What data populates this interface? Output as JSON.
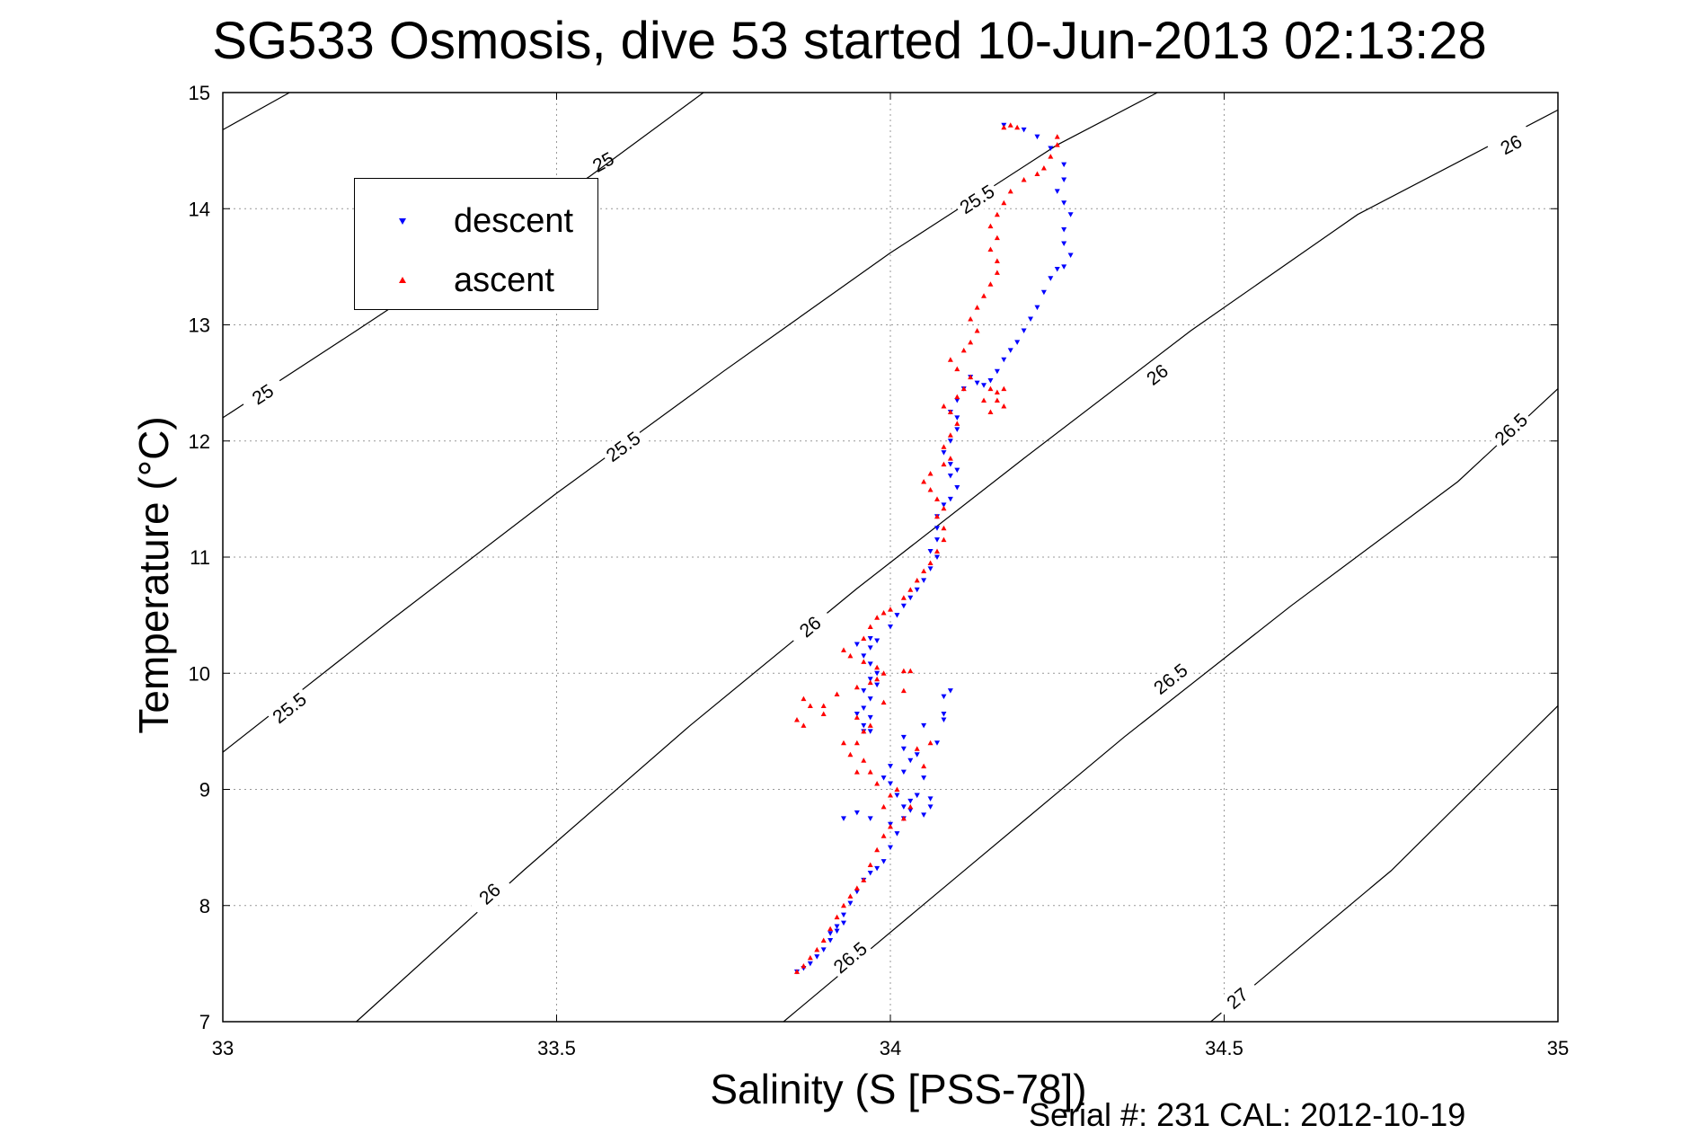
{
  "chart_data": {
    "type": "scatter",
    "title": "SG533 Osmosis, dive 53 started 10-Jun-2013 02:13:28",
    "xlabel": "Salinity (S [PSS-78])",
    "ylabel": "Temperature (°C)",
    "footer": "Serial #: 231  CAL: 2012-10-19",
    "xlim": [
      33,
      35
    ],
    "ylim": [
      7,
      15
    ],
    "xticks": [
      33,
      33.5,
      34,
      34.5,
      35
    ],
    "xtick_labels": [
      "33",
      "33.5",
      "34",
      "34.5",
      "35"
    ],
    "yticks": [
      7,
      8,
      9,
      10,
      11,
      12,
      13,
      14,
      15
    ],
    "ytick_labels": [
      "7",
      "8",
      "9",
      "10",
      "11",
      "12",
      "13",
      "14",
      "15"
    ],
    "grid": true,
    "legend": {
      "placement": "top-left",
      "entries": [
        "descent",
        "ascent"
      ]
    },
    "series": [
      {
        "name": "descent",
        "color": "#0000ff",
        "marker": "triangle-down",
        "points": [
          [
            33.86,
            7.43
          ],
          [
            33.87,
            7.46
          ],
          [
            33.88,
            7.5
          ],
          [
            33.89,
            7.56
          ],
          [
            33.9,
            7.62
          ],
          [
            33.91,
            7.7
          ],
          [
            33.92,
            7.78
          ],
          [
            33.93,
            7.85
          ],
          [
            33.92,
            7.82
          ],
          [
            33.91,
            7.76
          ],
          [
            33.93,
            7.92
          ],
          [
            33.94,
            8.02
          ],
          [
            33.95,
            8.12
          ],
          [
            33.96,
            8.22
          ],
          [
            33.97,
            8.28
          ],
          [
            33.98,
            8.32
          ],
          [
            33.99,
            8.38
          ],
          [
            34.0,
            8.5
          ],
          [
            34.01,
            8.62
          ],
          [
            34.0,
            8.7
          ],
          [
            33.97,
            8.75
          ],
          [
            33.95,
            8.8
          ],
          [
            33.93,
            8.75
          ],
          [
            34.02,
            8.85
          ],
          [
            34.03,
            8.9
          ],
          [
            34.04,
            8.95
          ],
          [
            34.06,
            8.92
          ],
          [
            34.06,
            8.85
          ],
          [
            34.05,
            8.78
          ],
          [
            34.03,
            8.82
          ],
          [
            34.01,
            8.95
          ],
          [
            34.0,
            9.05
          ],
          [
            34.02,
            9.15
          ],
          [
            34.03,
            9.25
          ],
          [
            34.04,
            9.3
          ],
          [
            34.02,
            9.35
          ],
          [
            34.0,
            9.2
          ],
          [
            33.99,
            9.1
          ],
          [
            33.97,
            9.5
          ],
          [
            33.96,
            9.55
          ],
          [
            33.97,
            9.62
          ],
          [
            33.96,
            9.7
          ],
          [
            33.97,
            9.78
          ],
          [
            33.96,
            9.85
          ],
          [
            33.98,
            9.9
          ],
          [
            33.97,
            9.95
          ],
          [
            33.98,
            10.0
          ],
          [
            33.97,
            10.08
          ],
          [
            33.96,
            10.15
          ],
          [
            33.97,
            10.22
          ],
          [
            33.98,
            10.28
          ],
          [
            33.97,
            10.3
          ],
          [
            33.95,
            10.25
          ],
          [
            34.0,
            10.4
          ],
          [
            34.01,
            10.5
          ],
          [
            34.02,
            10.58
          ],
          [
            34.03,
            10.65
          ],
          [
            34.04,
            10.72
          ],
          [
            34.05,
            10.8
          ],
          [
            34.06,
            10.9
          ],
          [
            34.07,
            11.0
          ],
          [
            34.06,
            11.05
          ],
          [
            34.07,
            11.15
          ],
          [
            34.07,
            11.25
          ],
          [
            34.07,
            11.35
          ],
          [
            34.08,
            11.45
          ],
          [
            34.09,
            11.5
          ],
          [
            34.1,
            11.6
          ],
          [
            34.09,
            11.7
          ],
          [
            34.1,
            11.75
          ],
          [
            34.09,
            11.8
          ],
          [
            34.08,
            11.9
          ],
          [
            34.09,
            12.0
          ],
          [
            34.1,
            12.1
          ],
          [
            34.1,
            12.2
          ],
          [
            34.09,
            12.25
          ],
          [
            34.1,
            12.35
          ],
          [
            34.11,
            12.45
          ],
          [
            34.12,
            12.55
          ],
          [
            34.13,
            12.5
          ],
          [
            34.14,
            12.48
          ],
          [
            34.15,
            12.52
          ],
          [
            34.16,
            12.6
          ],
          [
            34.17,
            12.7
          ],
          [
            34.18,
            12.78
          ],
          [
            34.19,
            12.85
          ],
          [
            34.2,
            12.95
          ],
          [
            34.21,
            13.05
          ],
          [
            34.22,
            13.15
          ],
          [
            34.23,
            13.28
          ],
          [
            34.24,
            13.4
          ],
          [
            34.25,
            13.48
          ],
          [
            34.26,
            13.5
          ],
          [
            34.27,
            13.6
          ],
          [
            34.26,
            13.7
          ],
          [
            34.26,
            13.82
          ],
          [
            34.27,
            13.95
          ],
          [
            34.26,
            14.05
          ],
          [
            34.25,
            14.15
          ],
          [
            34.26,
            14.25
          ],
          [
            34.26,
            14.38
          ],
          [
            34.24,
            14.52
          ],
          [
            34.22,
            14.62
          ],
          [
            34.2,
            14.68
          ],
          [
            34.17,
            14.72
          ],
          [
            34.08,
            9.8
          ],
          [
            34.09,
            9.85
          ],
          [
            34.08,
            9.6
          ],
          [
            34.07,
            9.4
          ],
          [
            34.05,
            9.1
          ],
          [
            34.04,
            8.95
          ],
          [
            34.02,
            8.75
          ],
          [
            33.95,
            9.65
          ],
          [
            33.96,
            9.5
          ],
          [
            34.02,
            9.45
          ],
          [
            34.05,
            9.55
          ],
          [
            34.08,
            9.65
          ]
        ]
      },
      {
        "name": "ascent",
        "color": "#ff0000",
        "marker": "triangle-up",
        "points": [
          [
            33.86,
            7.43
          ],
          [
            33.87,
            7.48
          ],
          [
            33.88,
            7.55
          ],
          [
            33.89,
            7.62
          ],
          [
            33.9,
            7.7
          ],
          [
            33.91,
            7.8
          ],
          [
            33.92,
            7.9
          ],
          [
            33.93,
            8.0
          ],
          [
            33.94,
            8.08
          ],
          [
            33.95,
            8.15
          ],
          [
            33.96,
            8.22
          ],
          [
            33.97,
            8.35
          ],
          [
            33.98,
            8.48
          ],
          [
            33.99,
            8.6
          ],
          [
            34.0,
            8.68
          ],
          [
            34.02,
            8.75
          ],
          [
            34.03,
            8.85
          ],
          [
            34.0,
            8.95
          ],
          [
            33.98,
            9.05
          ],
          [
            33.97,
            9.15
          ],
          [
            33.96,
            9.25
          ],
          [
            33.94,
            9.3
          ],
          [
            33.95,
            9.4
          ],
          [
            33.96,
            9.5
          ],
          [
            33.97,
            9.55
          ],
          [
            33.95,
            9.62
          ],
          [
            33.9,
            9.65
          ],
          [
            33.88,
            9.72
          ],
          [
            33.87,
            9.78
          ],
          [
            33.86,
            9.6
          ],
          [
            33.87,
            9.55
          ],
          [
            33.9,
            9.72
          ],
          [
            33.92,
            9.82
          ],
          [
            33.95,
            9.88
          ],
          [
            33.97,
            9.92
          ],
          [
            33.98,
            9.95
          ],
          [
            33.99,
            10.0
          ],
          [
            34.02,
            10.02
          ],
          [
            33.98,
            10.05
          ],
          [
            33.96,
            10.1
          ],
          [
            33.94,
            10.15
          ],
          [
            33.93,
            10.2
          ],
          [
            33.96,
            10.3
          ],
          [
            33.97,
            10.4
          ],
          [
            33.98,
            10.48
          ],
          [
            33.99,
            10.52
          ],
          [
            34.0,
            10.55
          ],
          [
            34.02,
            10.65
          ],
          [
            34.03,
            10.72
          ],
          [
            34.04,
            10.8
          ],
          [
            34.05,
            10.88
          ],
          [
            34.06,
            10.95
          ],
          [
            34.07,
            11.05
          ],
          [
            34.08,
            11.15
          ],
          [
            34.08,
            11.25
          ],
          [
            34.07,
            11.35
          ],
          [
            34.08,
            11.42
          ],
          [
            34.07,
            11.5
          ],
          [
            34.06,
            11.58
          ],
          [
            34.05,
            11.65
          ],
          [
            34.06,
            11.72
          ],
          [
            34.08,
            11.8
          ],
          [
            34.09,
            11.85
          ],
          [
            34.08,
            11.95
          ],
          [
            34.09,
            12.05
          ],
          [
            34.1,
            12.15
          ],
          [
            34.09,
            12.25
          ],
          [
            34.08,
            12.3
          ],
          [
            34.1,
            12.38
          ],
          [
            34.11,
            12.45
          ],
          [
            34.12,
            12.55
          ],
          [
            34.1,
            12.62
          ],
          [
            34.09,
            12.7
          ],
          [
            34.11,
            12.78
          ],
          [
            34.12,
            12.85
          ],
          [
            34.13,
            12.95
          ],
          [
            34.15,
            12.45
          ],
          [
            34.16,
            12.35
          ],
          [
            34.17,
            12.3
          ],
          [
            34.15,
            12.25
          ],
          [
            34.14,
            12.35
          ],
          [
            34.16,
            12.42
          ],
          [
            34.17,
            12.45
          ],
          [
            34.12,
            13.05
          ],
          [
            34.13,
            13.15
          ],
          [
            34.14,
            13.25
          ],
          [
            34.15,
            13.35
          ],
          [
            34.16,
            13.45
          ],
          [
            34.16,
            13.55
          ],
          [
            34.15,
            13.65
          ],
          [
            34.16,
            13.75
          ],
          [
            34.15,
            13.85
          ],
          [
            34.16,
            13.95
          ],
          [
            34.17,
            14.05
          ],
          [
            34.18,
            14.15
          ],
          [
            34.2,
            14.25
          ],
          [
            34.22,
            14.3
          ],
          [
            34.23,
            14.35
          ],
          [
            34.24,
            14.45
          ],
          [
            34.25,
            14.55
          ],
          [
            34.25,
            14.62
          ],
          [
            34.18,
            14.72
          ],
          [
            34.17,
            14.7
          ],
          [
            34.19,
            14.7
          ],
          [
            34.04,
            9.35
          ],
          [
            34.06,
            9.4
          ],
          [
            34.05,
            9.2
          ],
          [
            34.01,
            9.0
          ],
          [
            33.99,
            8.85
          ],
          [
            33.95,
            9.15
          ],
          [
            33.93,
            9.4
          ],
          [
            34.03,
            10.02
          ],
          [
            34.02,
            9.85
          ],
          [
            33.99,
            9.75
          ]
        ]
      }
    ],
    "contours": [
      {
        "level": "25",
        "points": [
          [
            33.0,
            14.68
          ],
          [
            33.1,
            15.0
          ]
        ],
        "labels": [
          {
            "x": 33.57,
            "y": 14.4,
            "text": "25"
          }
        ]
      },
      {
        "level": "25",
        "points": [
          [
            33.0,
            12.2
          ],
          [
            33.2,
            12.95
          ],
          [
            33.35,
            13.52
          ],
          [
            33.55,
            14.28
          ],
          [
            33.72,
            15.0
          ]
        ],
        "labels": [
          {
            "x": 33.06,
            "y": 12.4,
            "text": "25"
          }
        ]
      },
      {
        "level": "25.5",
        "points": [
          [
            33.0,
            9.32
          ],
          [
            33.25,
            10.45
          ],
          [
            33.5,
            11.55
          ],
          [
            33.75,
            12.6
          ],
          [
            34.0,
            13.62
          ],
          [
            34.25,
            14.55
          ],
          [
            34.4,
            15.0
          ]
        ],
        "labels": [
          {
            "x": 33.6,
            "y": 11.95,
            "text": "25.5"
          },
          {
            "x": 34.13,
            "y": 14.08,
            "text": "25.5"
          },
          {
            "x": 33.1,
            "y": 9.7,
            "text": "25.5"
          }
        ]
      },
      {
        "level": "26",
        "points": [
          [
            33.2,
            7.0
          ],
          [
            33.45,
            8.3
          ],
          [
            33.7,
            9.55
          ],
          [
            33.95,
            10.73
          ],
          [
            34.2,
            11.85
          ],
          [
            34.45,
            12.95
          ],
          [
            34.7,
            13.95
          ],
          [
            35.0,
            14.85
          ]
        ],
        "labels": [
          {
            "x": 33.4,
            "y": 8.1,
            "text": "26"
          },
          {
            "x": 33.88,
            "y": 10.4,
            "text": "26"
          },
          {
            "x": 34.4,
            "y": 12.57,
            "text": "26"
          },
          {
            "x": 34.93,
            "y": 14.55,
            "text": "26"
          }
        ]
      },
      {
        "level": "26.5",
        "points": [
          [
            33.84,
            7.0
          ],
          [
            34.1,
            8.25
          ],
          [
            34.35,
            9.45
          ],
          [
            34.6,
            10.58
          ],
          [
            34.85,
            11.65
          ],
          [
            35.0,
            12.45
          ]
        ],
        "labels": [
          {
            "x": 33.94,
            "y": 7.55,
            "text": "26.5"
          },
          {
            "x": 34.42,
            "y": 9.95,
            "text": "26.5"
          },
          {
            "x": 34.93,
            "y": 12.1,
            "text": "26.5"
          }
        ]
      },
      {
        "level": "27",
        "points": [
          [
            34.48,
            7.0
          ],
          [
            34.75,
            8.3
          ],
          [
            35.0,
            9.72
          ]
        ],
        "labels": [
          {
            "x": 34.52,
            "y": 7.2,
            "text": "27"
          }
        ]
      }
    ]
  }
}
